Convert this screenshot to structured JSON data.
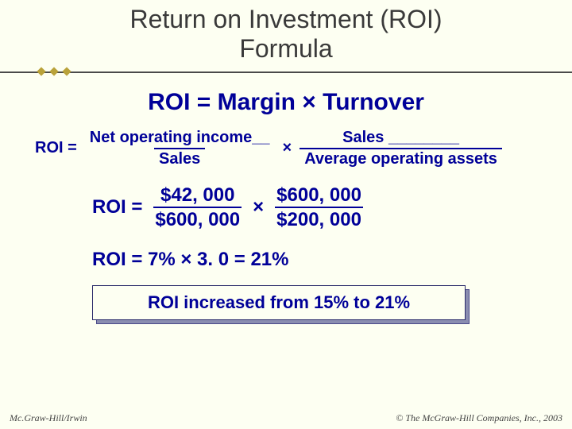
{
  "title": {
    "line1": "Return on Investment (ROI)",
    "line2": "Formula"
  },
  "eq_main": {
    "lhs": "ROI =",
    "rhs": "Margin × Turnover"
  },
  "eq_frac": {
    "lhs": "ROI  =",
    "frac1_num": "Net operating income__",
    "frac1_den": "Sales",
    "mul": "×",
    "frac2_num": "Sales ________",
    "frac2_den": "Average operating assets"
  },
  "eq_numeric": {
    "lhs": "ROI  =",
    "frac1_num": "$42, 000",
    "frac1_den": "$600, 000",
    "mul": "×",
    "frac2_num": "$600, 000",
    "frac2_den": "$200, 000"
  },
  "eq_result": "ROI  =  7% × 3. 0 = 21%",
  "callout": "ROI increased from 15% to 21%",
  "footer": {
    "left": "Mc.Graw-Hill/Irwin",
    "right": "© The McGraw-Hill Companies, Inc., 2003"
  },
  "colors": {
    "background": "#fdfff2",
    "title_text": "#3a3a3a",
    "formula_text": "#000098",
    "divider_line": "#4a4a4a",
    "divider_dot": "#b9a23a",
    "callout_shadow": "#8a8db0",
    "callout_border": "#2a2a6a"
  }
}
